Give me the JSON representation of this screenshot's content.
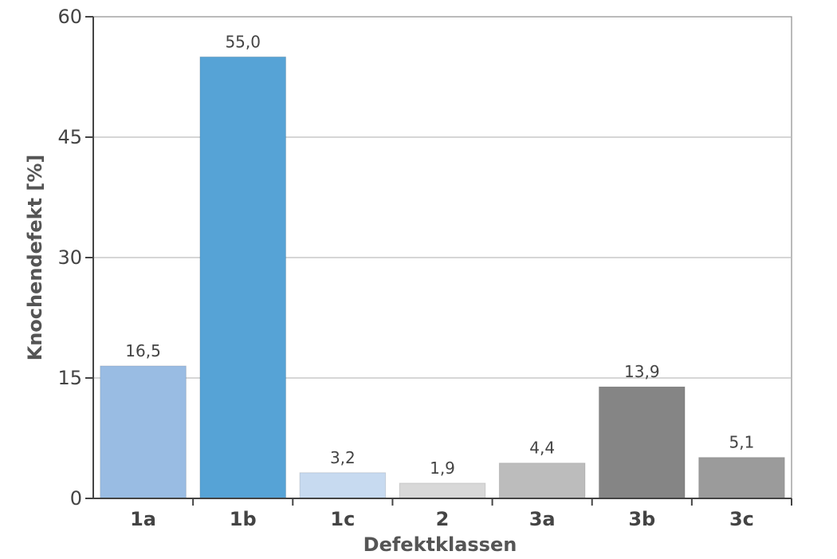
{
  "chart_data": {
    "type": "bar",
    "categories": [
      "1a",
      "1b",
      "1c",
      "2",
      "3a",
      "3b",
      "3c"
    ],
    "values": [
      16.5,
      55.0,
      3.2,
      1.9,
      4.4,
      13.9,
      5.1
    ],
    "value_labels": [
      "16,5",
      "55,0",
      "3,2",
      "1,9",
      "4,4",
      "13,9",
      "5,1"
    ],
    "colors": [
      "#99bce3",
      "#56a3d6",
      "#c7daf0",
      "#d8d8d8",
      "#bcbcbc",
      "#858585",
      "#9b9b9b"
    ],
    "xlabel": "Defektklassen",
    "ylabel": "Knochendefekt [%]",
    "ylim": [
      0,
      60
    ],
    "yticks": [
      0,
      15,
      30,
      45,
      60
    ],
    "ytick_labels": [
      "0",
      "15",
      "30",
      "45",
      "60"
    ],
    "grid": true,
    "legend": "none"
  }
}
